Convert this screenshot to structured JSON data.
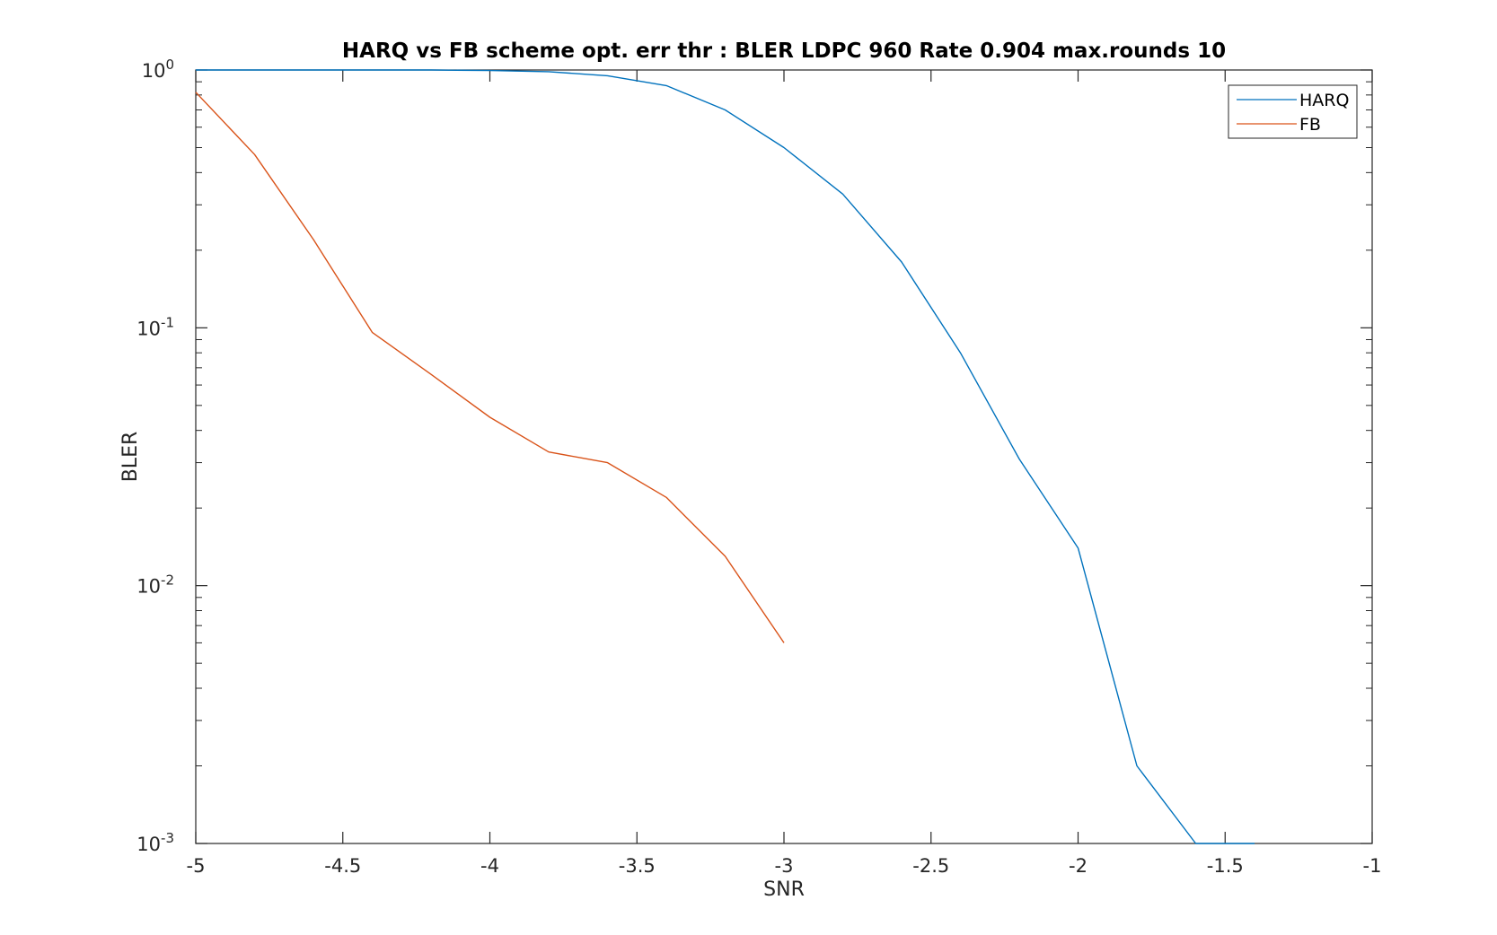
{
  "chart_data": {
    "type": "line",
    "title": "HARQ vs FB scheme opt. err thr : BLER LDPC 960 Rate 0.904 max.rounds 10",
    "xlabel": "SNR",
    "ylabel": "BLER",
    "xlim": [
      -5,
      -1
    ],
    "ylim": [
      0.001,
      1
    ],
    "yscale": "log",
    "grid": false,
    "legend_position": "top-right",
    "x_ticks": [
      -5,
      -4.5,
      -4,
      -3.5,
      -3,
      -2.5,
      -2,
      -1.5,
      -1
    ],
    "x_tick_labels": [
      "-5",
      "-4.5",
      "-4",
      "-3.5",
      "-3",
      "-2.5",
      "-2",
      "-1.5",
      "-1"
    ],
    "y_ticks": [
      {
        "value": 1,
        "base": "10",
        "exp": "0"
      },
      {
        "value": 0.1,
        "base": "10",
        "exp": "-1"
      },
      {
        "value": 0.01,
        "base": "10",
        "exp": "-2"
      },
      {
        "value": 0.001,
        "base": "10",
        "exp": "-3"
      }
    ],
    "series": [
      {
        "name": "HARQ",
        "color": "#0072bd",
        "x": [
          -5,
          -4.8,
          -4.6,
          -4.4,
          -4.2,
          -4.0,
          -3.8,
          -3.6,
          -3.4,
          -3.2,
          -3.0,
          -2.8,
          -2.6,
          -2.4,
          -2.2,
          -2.0,
          -1.8,
          -1.6,
          -1.4
        ],
        "y": [
          1.0,
          1.0,
          1.0,
          1.0,
          1.0,
          0.995,
          0.985,
          0.95,
          0.87,
          0.7,
          0.5,
          0.33,
          0.18,
          0.08,
          0.031,
          0.014,
          0.002,
          0.001,
          0.001
        ]
      },
      {
        "name": "FB",
        "color": "#d95319",
        "x": [
          -5,
          -4.8,
          -4.6,
          -4.4,
          -4.2,
          -4.0,
          -3.8,
          -3.6,
          -3.4,
          -3.2,
          -3.0
        ],
        "y": [
          0.82,
          0.47,
          0.22,
          0.096,
          0.066,
          0.045,
          0.033,
          0.03,
          0.022,
          0.013,
          0.006
        ]
      }
    ]
  }
}
